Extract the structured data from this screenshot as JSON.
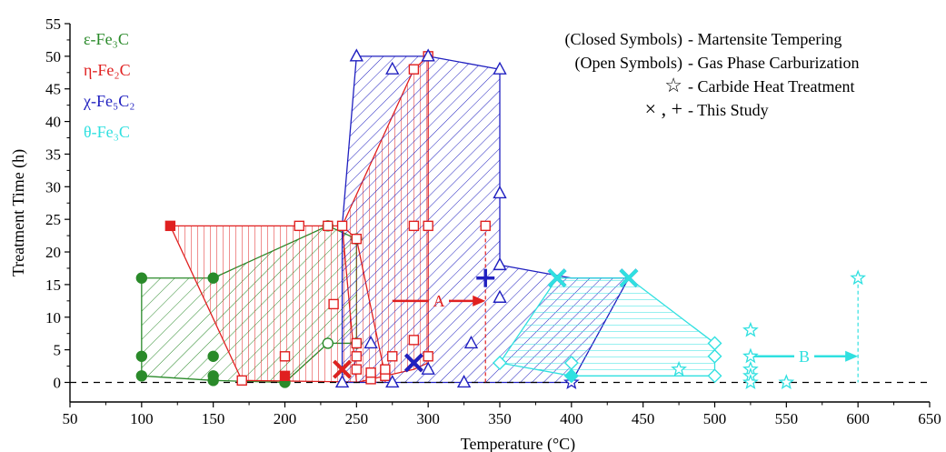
{
  "chart_data": {
    "type": "scatter",
    "xlabel": "Temperature (°C)",
    "ylabel": "Treatment Time (h)",
    "xlim": [
      50,
      650
    ],
    "ylim": [
      -3,
      55
    ],
    "xticks": [
      50,
      100,
      150,
      200,
      250,
      300,
      350,
      400,
      450,
      500,
      550,
      600,
      650
    ],
    "yticks": [
      0,
      5,
      10,
      15,
      20,
      25,
      30,
      35,
      40,
      45,
      50,
      55
    ],
    "grid": false,
    "reference_line_y": 0,
    "colors": {
      "epsilon": "#2a8a2a",
      "eta": "#e02020",
      "chi": "#2020c0",
      "theta": "#30e0e0"
    },
    "phase_labels": [
      {
        "key": "epsilon",
        "text": "ε-Fe₃C"
      },
      {
        "key": "eta",
        "text": "η-Fe₂C"
      },
      {
        "key": "chi",
        "text": "χ-Fe₅C₂"
      },
      {
        "key": "theta",
        "text": "θ-Fe₃C"
      }
    ],
    "legend": [
      {
        "symbol": "(Closed Symbols)",
        "desc": "- Martensite Tempering"
      },
      {
        "symbol": "(Open Symbols)",
        "desc": "- Gas Phase Carburization"
      },
      {
        "symbol": "☆",
        "desc": "- Carbide Heat Treatment"
      },
      {
        "symbol": "×  ,  +",
        "desc": "- This Study"
      }
    ],
    "regions": [
      {
        "key": "epsilon",
        "polygon": [
          [
            100,
            16
          ],
          [
            150,
            16
          ],
          [
            230,
            24
          ],
          [
            250,
            22
          ],
          [
            250,
            6
          ],
          [
            230,
            6
          ],
          [
            200,
            0
          ],
          [
            150,
            0.3
          ],
          [
            100,
            1
          ]
        ]
      },
      {
        "key": "eta",
        "polygon": [
          [
            120,
            24
          ],
          [
            240,
            24
          ],
          [
            250,
            22
          ],
          [
            270,
            1
          ],
          [
            270,
            0
          ],
          [
            170,
            0.3
          ]
        ]
      },
      {
        "key": "eta",
        "polygon": [
          [
            240,
            24
          ],
          [
            290,
            48
          ],
          [
            300,
            50
          ],
          [
            300,
            24
          ],
          [
            300,
            3
          ],
          [
            290,
            2
          ],
          [
            250,
            0
          ]
        ]
      },
      {
        "key": "chi",
        "polygon": [
          [
            250,
            50
          ],
          [
            300,
            50
          ],
          [
            350,
            48
          ],
          [
            350,
            18
          ],
          [
            400,
            16
          ],
          [
            440,
            16
          ],
          [
            400,
            0
          ],
          [
            325,
            0
          ],
          [
            275,
            0
          ],
          [
            240,
            0
          ],
          [
            240,
            24
          ]
        ]
      },
      {
        "key": "theta",
        "polygon": [
          [
            390,
            16
          ],
          [
            440,
            16
          ],
          [
            500,
            6
          ],
          [
            500,
            1
          ],
          [
            400,
            1
          ],
          [
            350,
            3
          ]
        ]
      }
    ],
    "series": [
      {
        "name": "ε-Fe₃C",
        "key": "epsilon",
        "marker": "circle",
        "filled": true,
        "points": [
          [
            100,
            16
          ],
          [
            150,
            16
          ],
          [
            100,
            4
          ],
          [
            150,
            4
          ],
          [
            100,
            1
          ],
          [
            150,
            1
          ],
          [
            150,
            0.3
          ],
          [
            200,
            0
          ]
        ]
      },
      {
        "name": "ε-Fe₃C",
        "key": "epsilon",
        "marker": "circle",
        "filled": false,
        "points": [
          [
            230,
            6
          ],
          [
            230,
            24
          ],
          [
            250,
            22
          ],
          [
            250,
            6
          ]
        ]
      },
      {
        "name": "η-Fe₂C",
        "key": "eta",
        "marker": "square",
        "filled": true,
        "points": [
          [
            120,
            24
          ],
          [
            200,
            1
          ]
        ]
      },
      {
        "name": "η-Fe₂C",
        "key": "eta",
        "marker": "square",
        "filled": false,
        "points": [
          [
            170,
            0.3
          ],
          [
            200,
            4
          ],
          [
            210,
            24
          ],
          [
            230,
            24
          ],
          [
            234,
            12
          ],
          [
            240,
            24
          ],
          [
            250,
            22
          ],
          [
            250,
            6
          ],
          [
            250,
            4
          ],
          [
            250,
            2
          ],
          [
            260,
            0.5
          ],
          [
            260,
            1.5
          ],
          [
            270,
            1
          ],
          [
            270,
            2
          ],
          [
            275,
            4
          ],
          [
            290,
            48
          ],
          [
            300,
            50
          ],
          [
            290,
            24
          ],
          [
            300,
            24
          ],
          [
            290,
            6.5
          ],
          [
            300,
            4
          ],
          [
            340,
            24
          ]
        ]
      },
      {
        "name": "χ-Fe₅C₂",
        "key": "chi",
        "marker": "triangle",
        "filled": false,
        "points": [
          [
            250,
            50
          ],
          [
            275,
            48
          ],
          [
            300,
            50
          ],
          [
            350,
            48
          ],
          [
            350,
            29
          ],
          [
            350,
            18
          ],
          [
            350,
            13
          ],
          [
            330,
            6
          ],
          [
            260,
            6
          ],
          [
            325,
            0
          ],
          [
            300,
            2
          ],
          [
            275,
            0
          ],
          [
            240,
            0
          ]
        ]
      },
      {
        "name": "θ-Fe₃C",
        "key": "theta",
        "marker": "diamond",
        "filled": false,
        "points": [
          [
            350,
            3
          ],
          [
            400,
            3
          ],
          [
            500,
            6
          ],
          [
            500,
            4
          ],
          [
            500,
            1
          ],
          [
            400,
            1
          ]
        ]
      },
      {
        "name": "θ-Fe₃C",
        "key": "theta",
        "marker": "star",
        "filled": false,
        "points": [
          [
            475,
            2
          ],
          [
            525,
            8
          ],
          [
            525,
            4
          ],
          [
            525,
            2
          ],
          [
            525,
            1
          ],
          [
            525,
            0
          ],
          [
            550,
            0
          ],
          [
            600,
            16
          ]
        ]
      },
      {
        "name": "χ-Fe₅C₂",
        "key": "chi",
        "marker": "star",
        "filled": false,
        "points": [
          [
            400,
            0
          ]
        ]
      },
      {
        "name": "θ-Fe₃C",
        "key": "theta",
        "marker": "diamond",
        "filled": true,
        "points": [
          [
            400,
            1
          ]
        ]
      },
      {
        "name": "This Study",
        "key": "epsilon",
        "marker": "x",
        "filled": true,
        "points": [
          [
            240,
            2
          ]
        ]
      },
      {
        "name": "This Study",
        "key": "eta",
        "marker": "x",
        "filled": true,
        "points": [
          [
            240,
            2
          ],
          [
            290,
            3
          ]
        ]
      },
      {
        "name": "This Study",
        "key": "chi",
        "marker": "x",
        "filled": true,
        "points": [
          [
            290,
            3
          ],
          [
            390,
            16
          ],
          [
            440,
            16
          ]
        ]
      },
      {
        "name": "This Study",
        "key": "theta",
        "marker": "x",
        "filled": true,
        "points": [
          [
            390,
            16
          ],
          [
            440,
            16
          ]
        ]
      },
      {
        "name": "This Study",
        "key": "chi",
        "marker": "plus",
        "filled": true,
        "points": [
          [
            340,
            16
          ]
        ]
      }
    ],
    "annotations": [
      {
        "text": "A",
        "key": "eta",
        "arrow_from": [
          275,
          12.5
        ],
        "arrow_to": [
          340,
          12.5
        ],
        "dashed_drop_x": 340,
        "dashed_from_y": 24
      },
      {
        "text": "B",
        "key": "theta",
        "arrow_from": [
          525,
          4
        ],
        "arrow_to": [
          600,
          4
        ],
        "dashed_drop_x": 600,
        "dashed_from_y": 16
      }
    ]
  }
}
